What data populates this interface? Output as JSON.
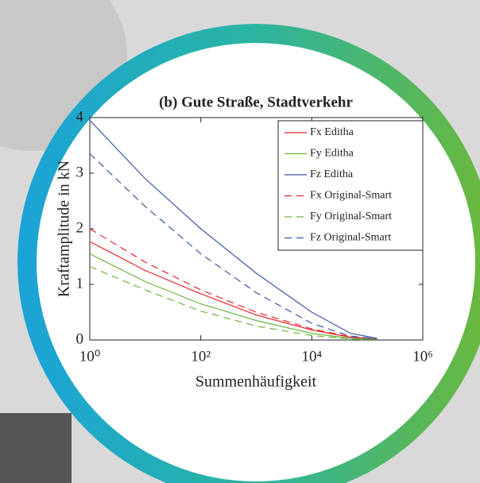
{
  "chart_data": {
    "type": "line",
    "title": "(b) Gute Straße, Stadtverkehr",
    "x_label": "Summenhäufigkeit",
    "y_label": "Kraftamplitude in kN",
    "x_scale": "log",
    "x": [
      1,
      10,
      100,
      1000,
      10000,
      50000,
      150000
    ],
    "series": [
      {
        "name": "Fx Editha",
        "color": "#e8262a",
        "style": "solid",
        "values": [
          1.77,
          1.25,
          0.83,
          0.45,
          0.18,
          0.05,
          0.02
        ]
      },
      {
        "name": "Fy Editha",
        "color": "#6ab43e",
        "style": "solid",
        "values": [
          1.55,
          1.05,
          0.65,
          0.35,
          0.12,
          0.03,
          0.01
        ]
      },
      {
        "name": "Fz Editha",
        "color": "#3a56a5",
        "style": "solid",
        "values": [
          3.95,
          2.9,
          2.0,
          1.2,
          0.5,
          0.12,
          0.03
        ]
      },
      {
        "name": "Fx Original-Smart",
        "color": "#e8262a",
        "style": "dashed",
        "values": [
          2.0,
          1.4,
          0.9,
          0.5,
          0.2,
          0.06,
          0.02
        ]
      },
      {
        "name": "Fy Original-Smart",
        "color": "#6ab43e",
        "style": "dashed",
        "values": [
          1.32,
          0.9,
          0.52,
          0.25,
          0.08,
          0.02,
          0.01
        ]
      },
      {
        "name": "Fz Original-Smart",
        "color": "#3a56a5",
        "style": "dashed",
        "values": [
          3.35,
          2.4,
          1.55,
          0.85,
          0.3,
          0.07,
          0.02
        ]
      }
    ],
    "xlim": [
      1,
      1000000
    ],
    "xticks": [
      {
        "value": 1,
        "label": "10⁰"
      },
      {
        "value": 100,
        "label": "10²"
      },
      {
        "value": 10000,
        "label": "10⁴"
      },
      {
        "value": 1000000,
        "label": "10⁶"
      }
    ],
    "ylim": [
      0,
      4
    ],
    "yticks": [
      0,
      1,
      2,
      3,
      4
    ],
    "legend": "top-right",
    "grid": false
  }
}
